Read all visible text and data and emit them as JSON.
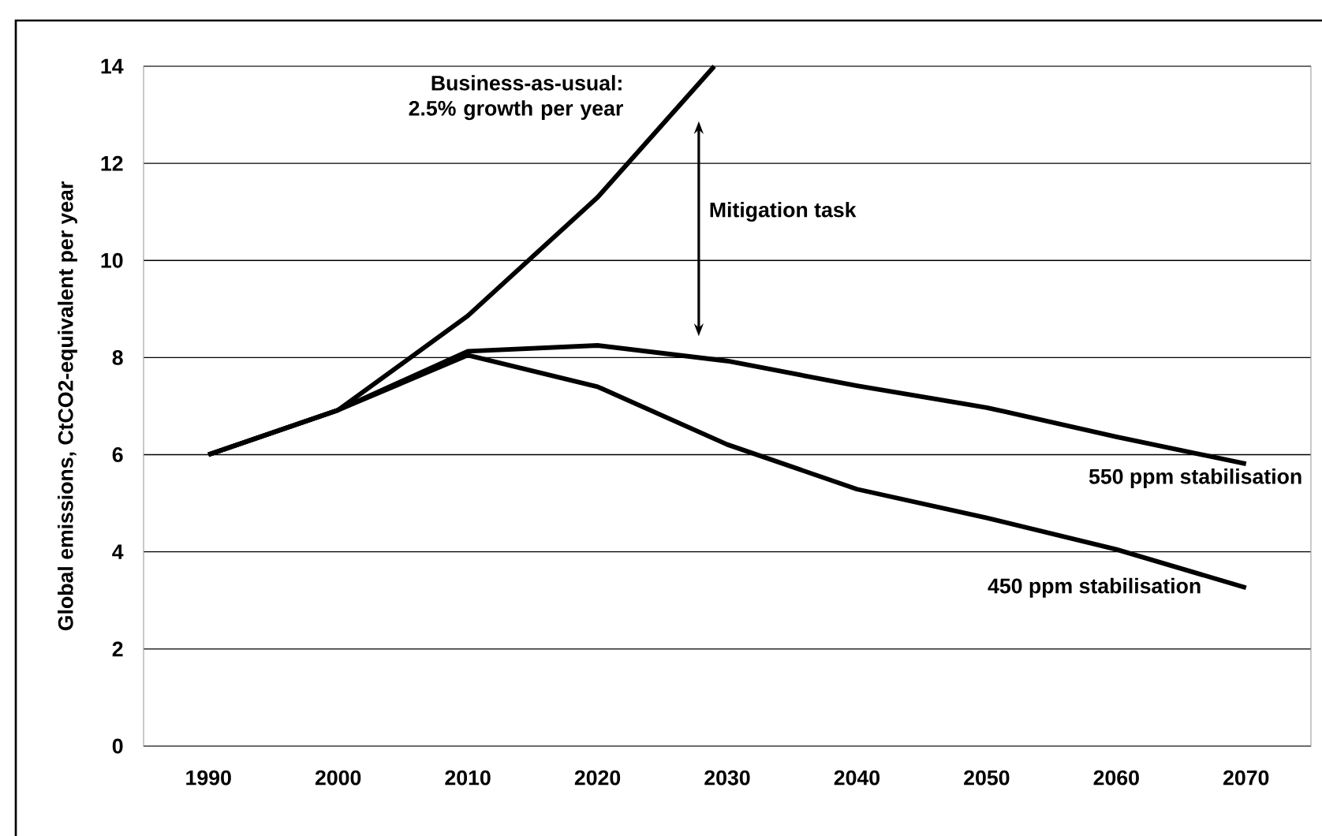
{
  "chart_data": {
    "type": "line",
    "ylabel": "Global emissions, CtCO2-equivalent per year",
    "xlim": [
      1985,
      2075
    ],
    "xticks": [
      1990,
      2000,
      2010,
      2020,
      2030,
      2040,
      2050,
      2060,
      2070
    ],
    "ylim": [
      0,
      14
    ],
    "yticks": [
      0,
      2,
      4,
      6,
      8,
      10,
      12,
      14
    ],
    "grid": "y",
    "legend": false,
    "marker": "none",
    "line_style": "solid",
    "series": [
      {
        "name": "Business-as-usual: 2.5% growth per year",
        "color": "#000000",
        "x": [
          1990,
          2000,
          2010,
          2020,
          2029
        ],
        "values": [
          6,
          6.92,
          8.86,
          11.3,
          14
        ]
      },
      {
        "name": "550 ppm stabilisation",
        "color": "#000000",
        "x": [
          1990,
          2000,
          2010,
          2020,
          2030,
          2040,
          2050,
          2060,
          2070
        ],
        "values": [
          6,
          6.92,
          8.13,
          8.25,
          7.93,
          7.42,
          6.97,
          6.37,
          5.81
        ]
      },
      {
        "name": "450 ppm stabilisation",
        "color": "#000000",
        "x": [
          1990,
          2000,
          2010,
          2020,
          2030,
          2040,
          2050,
          2060,
          2070
        ],
        "values": [
          6,
          6.92,
          8.05,
          7.4,
          6.21,
          5.29,
          4.7,
          4.05,
          3.26
        ]
      }
    ],
    "annotations": [
      "Mitigation task"
    ]
  }
}
